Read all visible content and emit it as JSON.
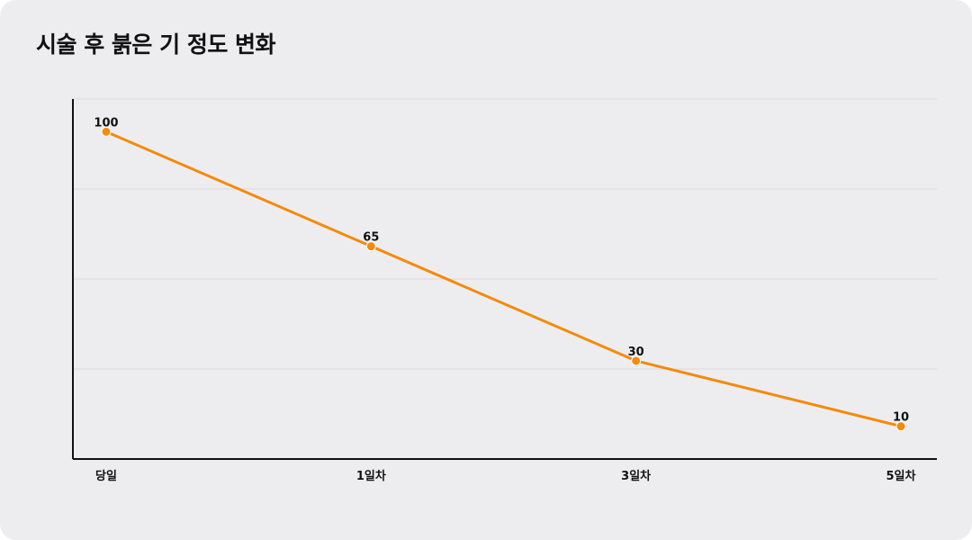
{
  "chart_data": {
    "type": "line",
    "title": "시술 후 붉은 기 정도 변화",
    "categories": [
      "당일",
      "1일차",
      "3일차",
      "5일차"
    ],
    "series": [
      {
        "values": [
          100,
          65,
          30,
          10
        ]
      }
    ],
    "ylim": [
      0,
      110
    ],
    "yticks": [
      0,
      27.5,
      55,
      82.5,
      110
    ],
    "grid": true,
    "y_tick_labels_shown": false,
    "data_labels": true,
    "colors": {
      "line": "#f58a0b",
      "grid": "#d9d9dd",
      "axis": "#111111",
      "background": "#ededf0"
    }
  }
}
